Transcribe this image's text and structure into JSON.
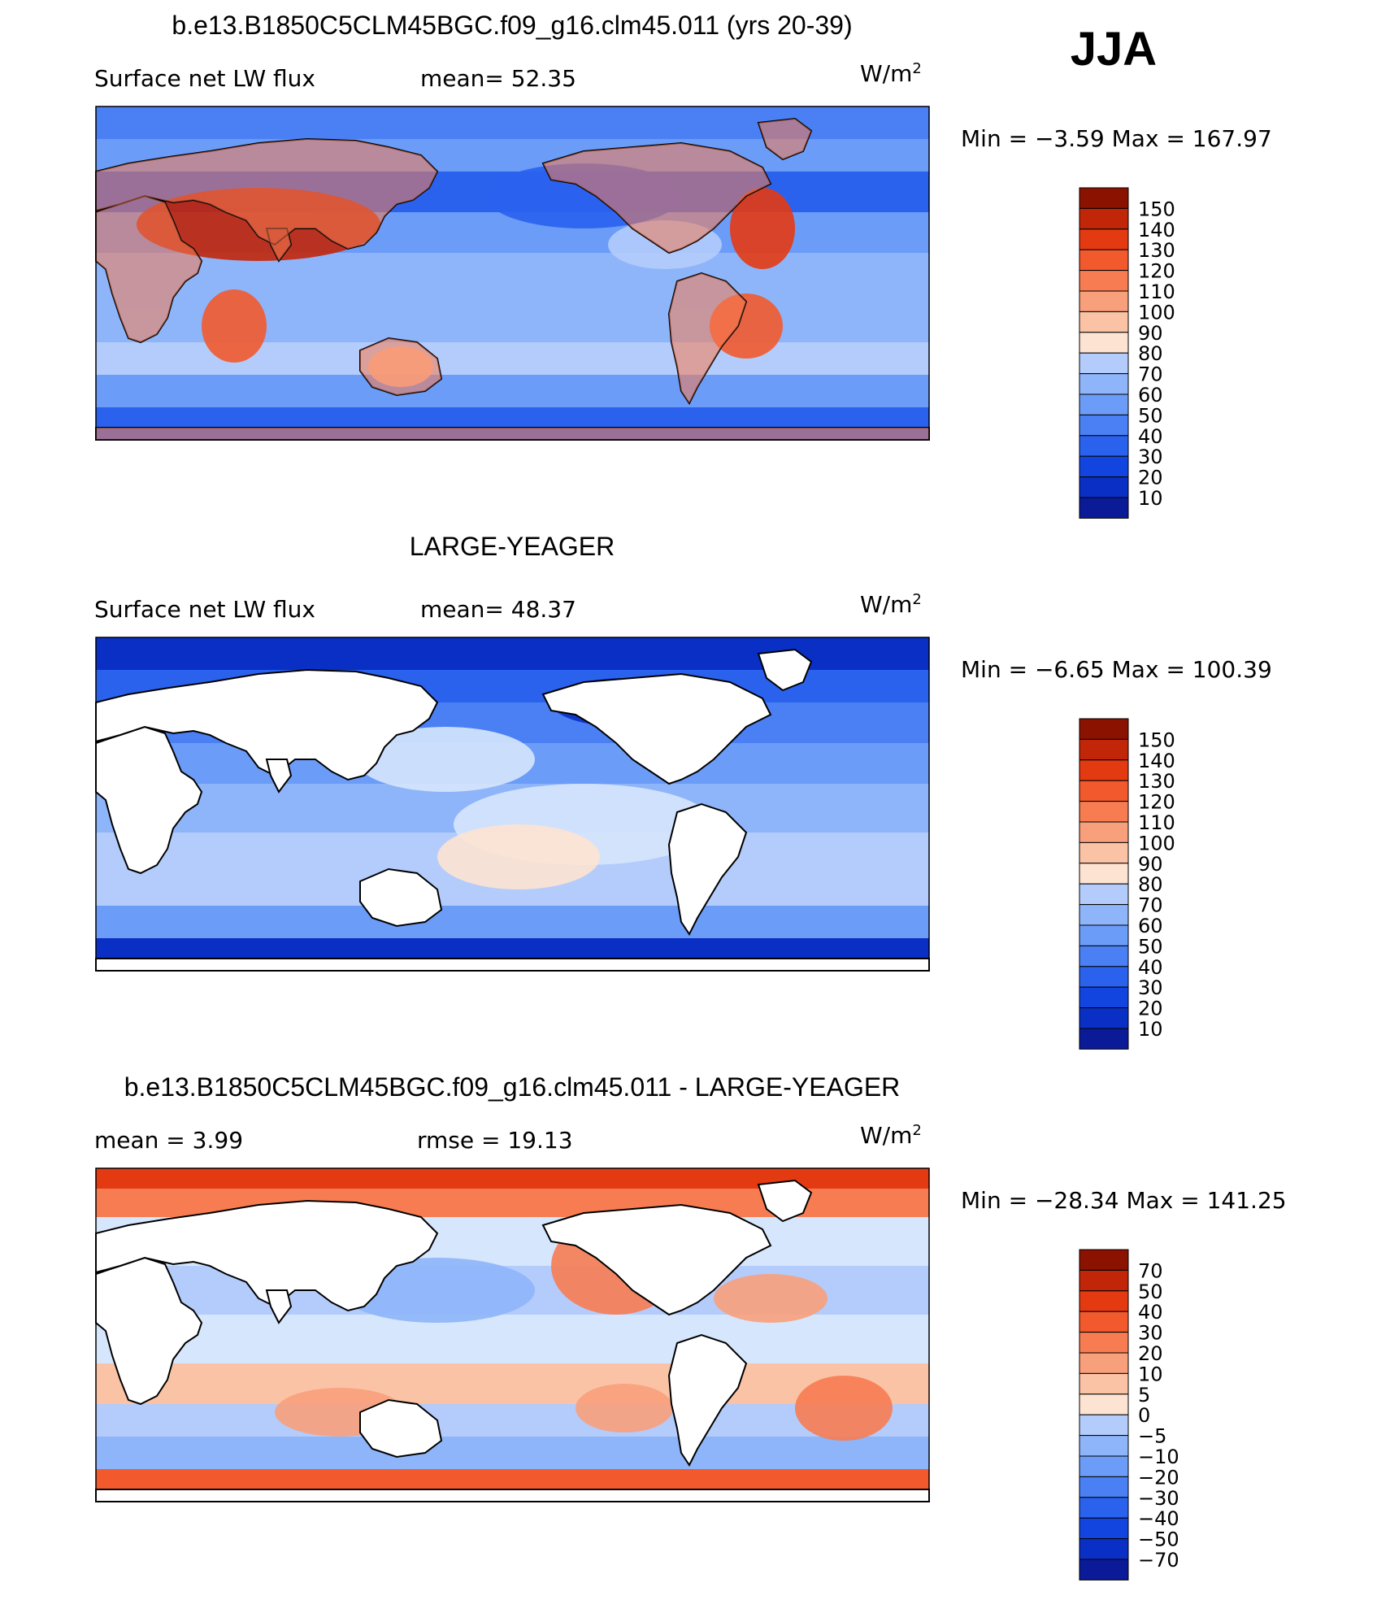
{
  "season": "JJA",
  "colors": {
    "land_mask": "#ffffff",
    "coastline": "#000000",
    "scale_abs": [
      "#0b1a96",
      "#0a2fc4",
      "#1245e0",
      "#2a62ee",
      "#4a80f4",
      "#6b9cf7",
      "#8eb5f9",
      "#b3ccfb",
      "#d6e6fc",
      "#fde3d2",
      "#fbc3a5",
      "#f8a07c",
      "#f77c52",
      "#f25a2e",
      "#e43a12",
      "#c22609",
      "#8c1200"
    ],
    "scale_diff": [
      "#0b1a96",
      "#0a2fc4",
      "#1245e0",
      "#2a62ee",
      "#4a80f4",
      "#6b9cf7",
      "#8eb5f9",
      "#b3ccfb",
      "#d6e6fc",
      "#fde3d2",
      "#fbc3a5",
      "#f8a07c",
      "#f77c52",
      "#f25a2e",
      "#e43a12",
      "#c22609",
      "#8c1200"
    ]
  },
  "panels": [
    {
      "title": "b.e13.B1850C5CLM45BGC.f09_g16.clm45.011 (yrs 20-39)",
      "left_label": "Surface net LW flux",
      "mid_label": "mean=   52.35",
      "units_base": "W/m",
      "units_exp": "2",
      "minmax": "Min  =   −3.59  Max  =  167.97",
      "colorbar_labels": [
        "150",
        "140",
        "130",
        "120",
        "110",
        "100",
        "90",
        "80",
        "70",
        "60",
        "50",
        "40",
        "30",
        "20",
        "10"
      ],
      "icon": "world-map-model-lw-flux"
    },
    {
      "title": "LARGE-YEAGER",
      "left_label": "Surface net LW flux",
      "mid_label": "mean=   48.37",
      "units_base": "W/m",
      "units_exp": "2",
      "minmax": "Min  =   −6.65  Max  =  100.39",
      "colorbar_labels": [
        "150",
        "140",
        "130",
        "120",
        "110",
        "100",
        "90",
        "80",
        "70",
        "60",
        "50",
        "40",
        "30",
        "20",
        "10"
      ],
      "icon": "world-map-obs-lw-flux"
    },
    {
      "title": "b.e13.B1850C5CLM45BGC.f09_g16.clm45.011 - LARGE-YEAGER",
      "left_label": "mean  =     3.99",
      "mid_label": "rmse  =    19.13",
      "units_base": "W/m",
      "units_exp": "2",
      "minmax": "Min  =  −28.34  Max  =  141.25",
      "colorbar_labels": [
        "70",
        "50",
        "40",
        "30",
        "20",
        "10",
        "5",
        "0",
        "−5",
        "−10",
        "−20",
        "−30",
        "−40",
        "−50",
        "−70"
      ],
      "icon": "world-map-difference-lw-flux"
    }
  ]
}
